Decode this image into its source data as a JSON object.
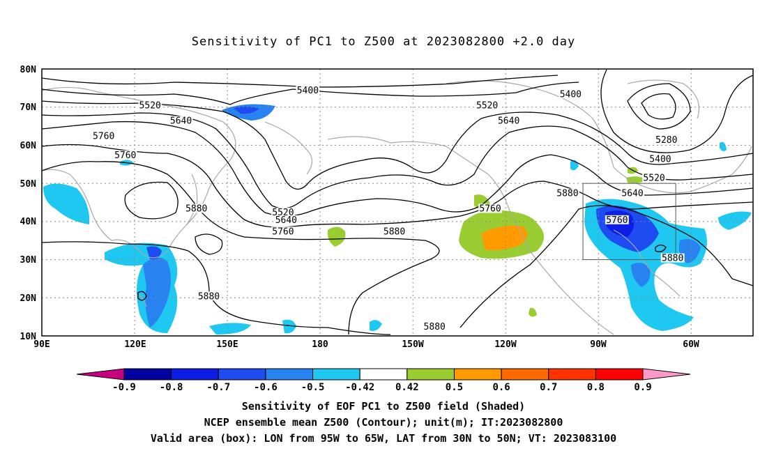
{
  "title": "Sensitivity of PC1 to Z500 at 2023082800 +2.0 day",
  "lat_labels": [
    "80N",
    "70N",
    "60N",
    "50N",
    "40N",
    "30N",
    "20N",
    "10N"
  ],
  "lon_labels": [
    "90E",
    "120E",
    "150E",
    "180",
    "150W",
    "120W",
    "90W",
    "60W"
  ],
  "contour_labels": [
    {
      "text": "5400",
      "lon": 176,
      "lat": 74
    },
    {
      "text": "5400",
      "lon": 261,
      "lat": 73
    },
    {
      "text": "5520",
      "lon": 125,
      "lat": 70
    },
    {
      "text": "5520",
      "lon": 234,
      "lat": 70
    },
    {
      "text": "5640",
      "lon": 135,
      "lat": 66
    },
    {
      "text": "5640",
      "lon": 241,
      "lat": 66
    },
    {
      "text": "5760",
      "lon": 110,
      "lat": 62
    },
    {
      "text": "5760",
      "lon": 117,
      "lat": 57
    },
    {
      "text": "5280",
      "lon": 292,
      "lat": 61
    },
    {
      "text": "5400",
      "lon": 290,
      "lat": 56
    },
    {
      "text": "5520",
      "lon": 288,
      "lat": 51
    },
    {
      "text": "5640",
      "lon": 281,
      "lat": 47
    },
    {
      "text": "5880",
      "lon": 260,
      "lat": 47
    },
    {
      "text": "5880",
      "lon": 140,
      "lat": 43
    },
    {
      "text": "5520",
      "lon": 168,
      "lat": 42
    },
    {
      "text": "5640",
      "lon": 169,
      "lat": 40
    },
    {
      "text": "5760",
      "lon": 168,
      "lat": 37
    },
    {
      "text": "5880",
      "lon": 204,
      "lat": 37
    },
    {
      "text": "5760",
      "lon": 235,
      "lat": 43
    },
    {
      "text": "5760",
      "lon": 276,
      "lat": 40
    },
    {
      "text": "5880",
      "lon": 294,
      "lat": 30
    },
    {
      "text": "5880",
      "lon": 144,
      "lat": 20
    },
    {
      "text": "5880",
      "lon": 217,
      "lat": 12
    }
  ],
  "colorbar": {
    "labels": [
      "-0.9",
      "-0.8",
      "-0.7",
      "-0.6",
      "-0.5",
      "-0.42",
      "0.42",
      "0.5",
      "0.6",
      "0.7",
      "0.8",
      "0.9"
    ],
    "colors": [
      "#c6007f",
      "#0000a0",
      "#0c1ee6",
      "#1e4cf0",
      "#2882f0",
      "#1ec8f0",
      "#ffffff",
      "#9acd32",
      "#ff9a00",
      "#ff6a00",
      "#ff3200",
      "#ff0000",
      "#ff9ac8"
    ]
  },
  "footer": {
    "line1": "Sensitivity of EOF PC1 to Z500 field (Shaded)",
    "line2": "NCEP ensemble mean Z500 (Contour); unit(m); IT:2023082800",
    "line3": "Valid area (box): LON from 95W to 65W, LAT from 30N to 50N; VT: 2023083100"
  }
}
